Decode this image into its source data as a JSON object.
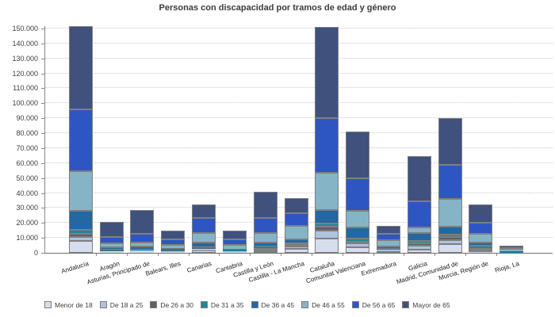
{
  "title": "Personas con discapacidad por tramos de edad y género",
  "colors": {
    "grid": "#c9c9c9",
    "axis": "#8a8a8a",
    "bar_border": "#7f7f7f",
    "text": "#3d3d3d"
  },
  "chart_data": {
    "type": "bar",
    "stacked": true,
    "title": "Personas con discapacidad por tramos de edad y género",
    "xlabel": "",
    "ylabel": "",
    "ylim": [
      0,
      150000
    ],
    "ytick_step": 10000,
    "ytick_labels": [
      "0",
      "10.000",
      "20.000",
      "30.000",
      "40.000",
      "50.000",
      "60.000",
      "70.000",
      "80.000",
      "90.000",
      "100.000",
      "110.000",
      "120.000",
      "130.000",
      "140.000",
      "150.000"
    ],
    "grid": "horizontal-dotted",
    "legend_position": "bottom",
    "categories": [
      "Andalucía",
      "Aragón",
      "Asturias, Principado de",
      "Balears, Illes",
      "Canarias",
      "Cantabria",
      "Castilla y León",
      "Castilla - La Mancha",
      "Cataluña",
      "Comunitat Valenciana",
      "Extremadura",
      "Galicia",
      "Madrid, Comunidad de",
      "Murcia, Región de",
      "Rioja, La"
    ],
    "series": [
      {
        "name": "Menor de 18",
        "color": "#d8ddee",
        "values": [
          8000,
          900,
          900,
          600,
          1400,
          700,
          1100,
          2500,
          9700,
          3500,
          1300,
          2100,
          5800,
          500,
          200
        ]
      },
      {
        "name": "De 18 a 25",
        "color": "#aec3de",
        "values": [
          2800,
          500,
          600,
          500,
          1000,
          400,
          1100,
          1700,
          5000,
          2700,
          800,
          2700,
          2900,
          1200,
          200
        ]
      },
      {
        "name": "De 26 a 30",
        "color": "#5d6166",
        "values": [
          2100,
          400,
          500,
          500,
          700,
          300,
          1200,
          1300,
          2600,
          1400,
          400,
          1600,
          1800,
          1100,
          200
        ]
      },
      {
        "name": "De 31 a 35",
        "color": "#1d87a2",
        "values": [
          2300,
          200,
          300,
          300,
          700,
          200,
          900,
          1100,
          2300,
          1800,
          300,
          1600,
          1600,
          1800,
          100
        ]
      },
      {
        "name": "De 36 a 45",
        "color": "#2467a2",
        "values": [
          13000,
          1900,
          2100,
          900,
          2900,
          700,
          2600,
          2400,
          9200,
          7500,
          1400,
          5300,
          5300,
          2400,
          400
        ]
      },
      {
        "name": "De 46 a 55",
        "color": "#85b4c6",
        "values": [
          26500,
          2300,
          2700,
          2500,
          6400,
          3000,
          6500,
          8900,
          24800,
          11300,
          4100,
          3700,
          18700,
          5800,
          1000
        ]
      },
      {
        "name": "De 56 a 65",
        "color": "#2e56c3",
        "values": [
          41500,
          4400,
          5800,
          3700,
          10100,
          3700,
          9800,
          8800,
          36600,
          21700,
          4400,
          17500,
          22600,
          7400,
          1100
        ]
      },
      {
        "name": "Mayor de 65",
        "color": "#40517e",
        "values": [
          55200,
          9900,
          15600,
          5700,
          9400,
          5700,
          17500,
          10000,
          61100,
          31300,
          5300,
          30000,
          31300,
          12400,
          1800
        ]
      }
    ]
  }
}
